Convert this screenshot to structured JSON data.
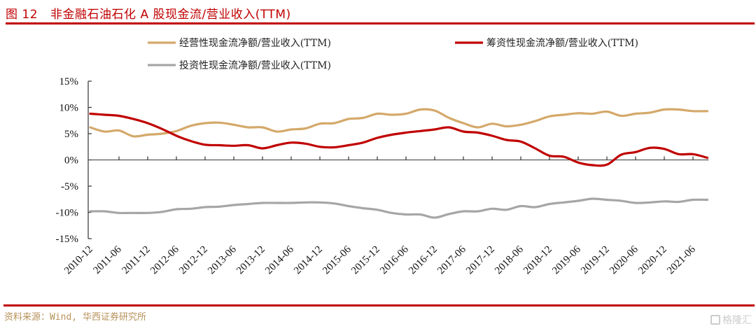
{
  "header": {
    "figure_number": "图 12",
    "title": "非金融石油石化 A 股现金流/营业收入(TTM)"
  },
  "footer": {
    "source": "资料来源：Wind, 华西证券研究所",
    "watermark": "格隆汇"
  },
  "chart_data": {
    "type": "line",
    "title": "非金融石油石化 A 股现金流/营业收入(TTM)",
    "xlabel": "",
    "ylabel": "",
    "ylim": [
      -15,
      15
    ],
    "yticks": [
      15,
      10,
      5,
      0,
      -5,
      -10,
      -15
    ],
    "ytick_labels": [
      "15%",
      "10%",
      "5%",
      "0%",
      "-5%",
      "-10%",
      "-15%"
    ],
    "xtick_labels": [
      "2010-12",
      "2011-06",
      "2011-12",
      "2012-06",
      "2012-12",
      "2013-06",
      "2013-12",
      "2014-06",
      "2014-12",
      "2015-06",
      "2015-12",
      "2016-06",
      "2016-12",
      "2017-06",
      "2017-12",
      "2018-06",
      "2018-12",
      "2019-06",
      "2019-12",
      "2020-06",
      "2020-12",
      "2021-06"
    ],
    "grid": false,
    "legend_position": "top",
    "x": [
      "2010-12",
      "2011-03",
      "2011-06",
      "2011-09",
      "2011-12",
      "2012-03",
      "2012-06",
      "2012-09",
      "2012-12",
      "2013-03",
      "2013-06",
      "2013-09",
      "2013-12",
      "2014-03",
      "2014-06",
      "2014-09",
      "2014-12",
      "2015-03",
      "2015-06",
      "2015-09",
      "2015-12",
      "2016-03",
      "2016-06",
      "2016-09",
      "2016-12",
      "2017-03",
      "2017-06",
      "2017-09",
      "2017-12",
      "2018-03",
      "2018-06",
      "2018-09",
      "2018-12",
      "2019-03",
      "2019-06",
      "2019-09",
      "2019-12",
      "2020-03",
      "2020-06",
      "2020-09",
      "2020-12",
      "2021-03",
      "2021-06",
      "2021-09"
    ],
    "series": [
      {
        "name": "经营性现金流净额/营业收入(TTM)",
        "color": "#d4a96a",
        "values": [
          6.2,
          5.4,
          5.6,
          4.5,
          4.8,
          5.0,
          5.5,
          6.5,
          7.0,
          7.1,
          6.7,
          6.2,
          6.2,
          5.4,
          5.8,
          6.0,
          6.9,
          7.0,
          7.8,
          8.0,
          8.8,
          8.6,
          8.8,
          9.6,
          9.4,
          8.0,
          7.0,
          6.2,
          6.9,
          6.4,
          6.7,
          7.4,
          8.3,
          8.6,
          8.9,
          8.8,
          9.2,
          8.4,
          8.8,
          9.0,
          9.6,
          9.6,
          9.3,
          9.3
        ]
      },
      {
        "name": "筹资性现金流净额/营业收入(TTM)",
        "color": "#c00000",
        "values": [
          8.8,
          8.6,
          8.4,
          7.8,
          7.0,
          5.9,
          4.6,
          3.6,
          2.9,
          2.8,
          2.7,
          2.8,
          2.2,
          2.8,
          3.3,
          3.1,
          2.5,
          2.4,
          2.8,
          3.3,
          4.2,
          4.8,
          5.2,
          5.5,
          5.8,
          6.2,
          5.4,
          5.2,
          4.6,
          3.8,
          3.5,
          2.2,
          0.8,
          0.6,
          -0.5,
          -1.0,
          -0.9,
          1.0,
          1.5,
          2.3,
          2.1,
          1.1,
          1.1,
          0.4
        ]
      },
      {
        "name": "投资性现金流净额/营业收入(TTM)",
        "color": "#a6a6a6",
        "values": [
          -9.8,
          -9.8,
          -10.1,
          -10.1,
          -10.1,
          -9.9,
          -9.4,
          -9.3,
          -9.0,
          -8.9,
          -8.6,
          -8.4,
          -8.2,
          -8.2,
          -8.2,
          -8.1,
          -8.1,
          -8.3,
          -8.8,
          -9.2,
          -9.5,
          -10.1,
          -10.4,
          -10.4,
          -11.0,
          -10.3,
          -9.8,
          -9.8,
          -9.3,
          -9.5,
          -8.8,
          -9.0,
          -8.4,
          -8.1,
          -7.8,
          -7.4,
          -7.6,
          -7.8,
          -8.2,
          -8.1,
          -7.9,
          -8.0,
          -7.6,
          -7.6
        ]
      }
    ]
  }
}
